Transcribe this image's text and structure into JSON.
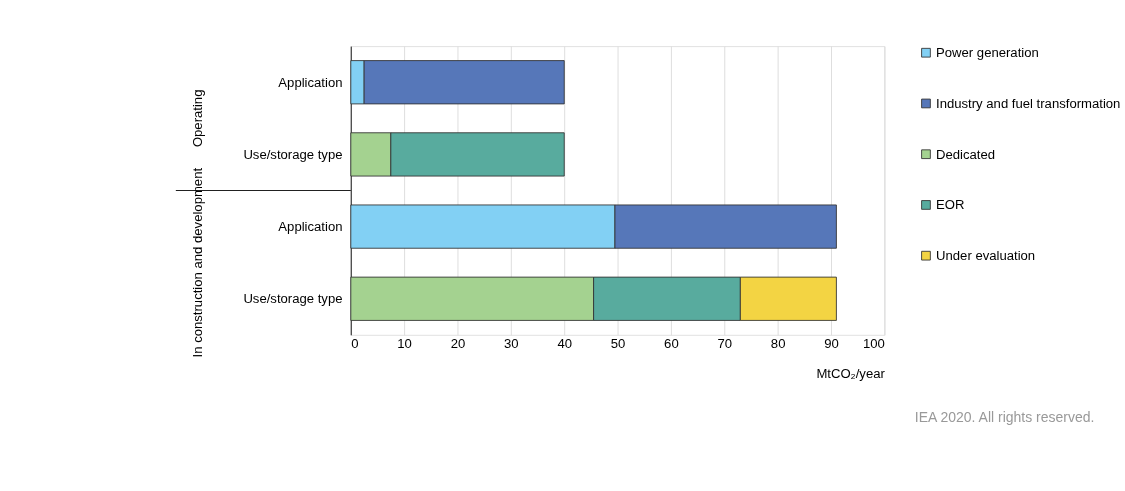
{
  "chart_data": {
    "type": "bar",
    "orientation": "horizontal",
    "stacked": true,
    "categories": [
      "Application",
      "Use/storage type",
      "Application",
      "Use/storage type"
    ],
    "series": [
      {
        "name": "Power generation",
        "color": "#82d0f4",
        "values": [
          2.5,
          null,
          49.5,
          null
        ]
      },
      {
        "name": "Industry and fuel transformation",
        "color": "#5677b9",
        "values": [
          37.5,
          null,
          41.5,
          null
        ]
      },
      {
        "name": "Dedicated",
        "color": "#a4d290",
        "values": [
          null,
          7.5,
          null,
          45.5
        ]
      },
      {
        "name": "EOR",
        "color": "#58ab9e",
        "values": [
          null,
          32.5,
          null,
          27.5
        ]
      },
      {
        "name": "Under evaluation",
        "color": "#f3d443",
        "values": [
          null,
          null,
          null,
          18
        ]
      }
    ],
    "xlabel": "MtCO₂/year",
    "xlim": [
      0,
      100
    ],
    "xticks": [
      0,
      10,
      20,
      30,
      40,
      50,
      60,
      70,
      80,
      90,
      100
    ],
    "grid": "x",
    "legend": "top right",
    "annotations": [
      "Operating",
      "In construction and development",
      "IEA 2020. All rights reserved."
    ]
  }
}
